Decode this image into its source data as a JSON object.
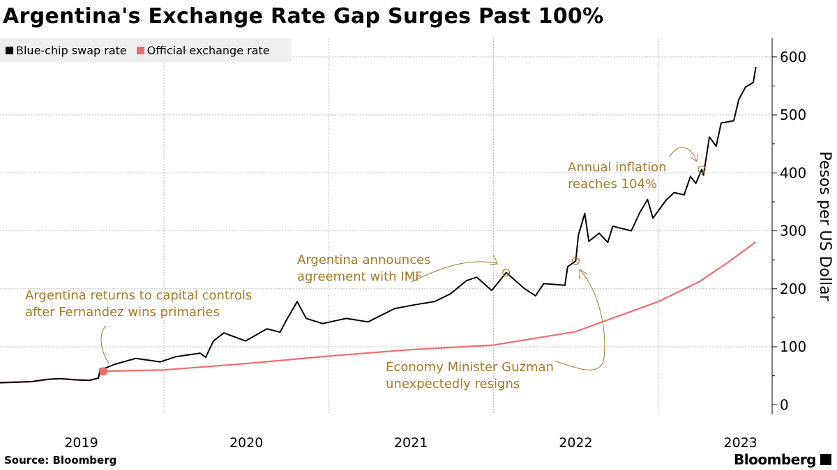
{
  "title": "Argentina's Exchange Rate Gap Surges Past 100%",
  "source": "Source: Bloomberg",
  "logo": "Bloomberg",
  "colors": {
    "blue_chip": "#000000",
    "official": "#f26b6b",
    "annotation": "#a57a28",
    "legend_bg": "#efefef"
  },
  "chart_data": {
    "type": "line",
    "title": "Argentina's Exchange Rate Gap Surges Past 100%",
    "ylabel": "Pesos per US Dollar",
    "xlabel": "",
    "ylim": [
      0,
      640
    ],
    "yticks": [
      0,
      100,
      200,
      300,
      400,
      500,
      600
    ],
    "xticks": [
      "2019",
      "2020",
      "2021",
      "2022",
      "2023"
    ],
    "xlim": [
      "2019-01-01",
      "2023-08-20"
    ],
    "y_axis_side": "right",
    "grid": true,
    "legend": "top-left",
    "series": [
      {
        "name": "Blue-chip swap rate",
        "color": "#000000",
        "points": [
          [
            "2019-01-02",
            38
          ],
          [
            "2019-03-15",
            40
          ],
          [
            "2019-04-20",
            44
          ],
          [
            "2019-05-15",
            45
          ],
          [
            "2019-06-20",
            43
          ],
          [
            "2019-07-20",
            42
          ],
          [
            "2019-08-09",
            46
          ],
          [
            "2019-08-13",
            62
          ],
          [
            "2019-08-20",
            62
          ],
          [
            "2019-09-15",
            70
          ],
          [
            "2019-10-31",
            80
          ],
          [
            "2019-12-24",
            74
          ],
          [
            "2020-01-28",
            83
          ],
          [
            "2020-03-21",
            89
          ],
          [
            "2020-04-03",
            82
          ],
          [
            "2020-04-20",
            110
          ],
          [
            "2020-05-13",
            124
          ],
          [
            "2020-06-30",
            110
          ],
          [
            "2020-08-17",
            131
          ],
          [
            "2020-09-15",
            125
          ],
          [
            "2020-09-29",
            146
          ],
          [
            "2020-10-23",
            178
          ],
          [
            "2020-11-12",
            149
          ],
          [
            "2020-12-18",
            140
          ],
          [
            "2021-02-09",
            149
          ],
          [
            "2021-03-29",
            143
          ],
          [
            "2021-05-27",
            166
          ],
          [
            "2021-07-14",
            173
          ],
          [
            "2021-08-23",
            178
          ],
          [
            "2021-09-27",
            191
          ],
          [
            "2021-11-02",
            214
          ],
          [
            "2021-11-25",
            220
          ],
          [
            "2021-12-28",
            197
          ],
          [
            "2022-01-29",
            228
          ],
          [
            "2022-03-11",
            200
          ],
          [
            "2022-04-04",
            188
          ],
          [
            "2022-04-22",
            209
          ],
          [
            "2022-06-08",
            206
          ],
          [
            "2022-06-14",
            238
          ],
          [
            "2022-07-02",
            248
          ],
          [
            "2022-07-08",
            293
          ],
          [
            "2022-07-22",
            330
          ],
          [
            "2022-07-31",
            282
          ],
          [
            "2022-08-23",
            296
          ],
          [
            "2022-09-11",
            280
          ],
          [
            "2022-09-22",
            308
          ],
          [
            "2022-11-02",
            300
          ],
          [
            "2022-11-21",
            332
          ],
          [
            "2022-12-08",
            354
          ],
          [
            "2022-12-20",
            322
          ],
          [
            "2023-01-19",
            354
          ],
          [
            "2023-02-05",
            366
          ],
          [
            "2023-02-27",
            362
          ],
          [
            "2023-03-13",
            394
          ],
          [
            "2023-03-25",
            382
          ],
          [
            "2023-04-07",
            406
          ],
          [
            "2023-04-11",
            396
          ],
          [
            "2023-04-24",
            462
          ],
          [
            "2023-05-09",
            446
          ],
          [
            "2023-05-20",
            486
          ],
          [
            "2023-06-17",
            490
          ],
          [
            "2023-06-28",
            526
          ],
          [
            "2023-07-13",
            548
          ],
          [
            "2023-07-30",
            556
          ],
          [
            "2023-08-05",
            583
          ]
        ]
      },
      {
        "name": "Official exchange rate",
        "color": "#f26b6b",
        "points": [
          [
            "2019-01-02",
            38
          ],
          [
            "2019-03-15",
            40
          ],
          [
            "2019-04-20",
            44
          ],
          [
            "2019-05-15",
            45
          ],
          [
            "2019-06-20",
            43
          ],
          [
            "2019-07-20",
            42
          ],
          [
            "2019-08-09",
            46
          ],
          [
            "2019-08-13",
            57
          ],
          [
            "2019-09-01",
            58
          ],
          [
            "2020-01-01",
            60
          ],
          [
            "2020-07-01",
            71
          ],
          [
            "2021-01-01",
            84
          ],
          [
            "2021-07-01",
            95
          ],
          [
            "2022-01-01",
            103
          ],
          [
            "2022-07-01",
            126
          ],
          [
            "2023-01-01",
            178
          ],
          [
            "2023-04-01",
            212
          ],
          [
            "2023-06-01",
            244
          ],
          [
            "2023-08-05",
            281
          ]
        ]
      }
    ],
    "annotations": [
      {
        "text": [
          "Argentina returns to capital controls",
          "after Fernandez wins primaries"
        ],
        "date": "2019-08-20",
        "value": 60,
        "series": "Official exchange rate"
      },
      {
        "text": [
          "Argentina announces",
          "agreement with IMF"
        ],
        "date": "2022-01-29",
        "value": 228,
        "series": "Blue-chip swap rate"
      },
      {
        "text": [
          "Economy Minister Guzman",
          "unexpectedly resigns"
        ],
        "date": "2022-07-02",
        "value": 248,
        "series": "Blue-chip swap rate"
      },
      {
        "text": [
          "Annual inflation",
          "reaches 104%"
        ],
        "date": "2023-04-07",
        "value": 406,
        "series": "Blue-chip swap rate"
      }
    ]
  }
}
